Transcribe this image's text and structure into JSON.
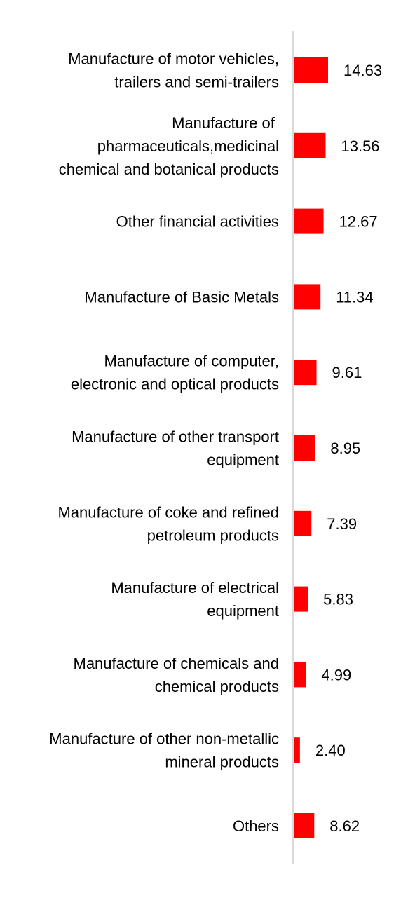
{
  "chart_data": {
    "type": "bar",
    "orientation": "horizontal",
    "title": "",
    "xlabel": "",
    "ylabel": "",
    "grid": false,
    "legend": "none",
    "bar_color": "#ff0000",
    "axis_color": "#d9d9d9",
    "text_color": "#000000",
    "categories": [
      [
        "Manufacture of motor vehicles,",
        "trailers and semi-trailers"
      ],
      [
        "Manufacture of ",
        "pharmaceuticals,medicinal",
        "chemical and botanical products"
      ],
      [
        "Other financial activities"
      ],
      [
        "Manufacture of Basic Metals"
      ],
      [
        "Manufacture of computer,",
        "electronic and optical products"
      ],
      [
        "Manufacture of other transport",
        "equipment"
      ],
      [
        "Manufacture of coke and refined",
        "petroleum products"
      ],
      [
        "Manufacture of electrical",
        "equipment"
      ],
      [
        "Manufacture of chemicals and",
        "chemical products"
      ],
      [
        "Manufacture of other non-metallic",
        "mineral products"
      ],
      [
        "Others"
      ]
    ],
    "values": [
      14.63,
      13.56,
      12.67,
      11.34,
      9.61,
      8.95,
      7.39,
      5.83,
      4.99,
      2.4,
      8.62
    ],
    "data_labels": [
      "14.63",
      "13.56",
      "12.67",
      "11.34",
      "9.61",
      "8.95",
      "7.39",
      "5.83",
      "4.99",
      "2.40",
      "8.62"
    ],
    "xlim": [
      0,
      16
    ]
  }
}
